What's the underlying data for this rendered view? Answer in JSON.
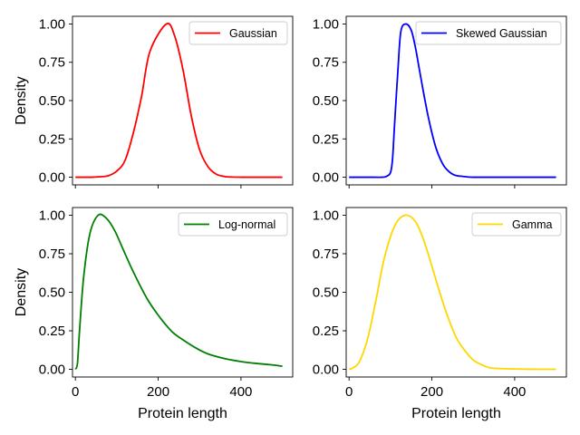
{
  "chart_data": [
    {
      "type": "line",
      "name": "Gaussian",
      "color": "#ff0000",
      "series": [
        {
          "name": "Gaussian",
          "values": [
            0,
            0,
            0,
            0.003,
            0.01,
            0.04,
            0.11,
            0.29,
            0.53,
            0.82,
            1.0,
            0.92,
            0.7,
            0.4,
            0.18,
            0.07,
            0.02,
            0.005,
            0.001,
            0,
            0,
            0,
            0
          ]
        }
      ],
      "x": [
        0,
        20,
        40,
        60,
        80,
        100,
        120,
        140,
        160,
        180,
        220,
        240,
        260,
        280,
        300,
        320,
        340,
        360,
        380,
        400,
        420,
        460,
        500
      ],
      "xlim": [
        -7,
        525
      ],
      "ylim": [
        -0.05,
        1.05
      ],
      "xticks": [
        0,
        200,
        400
      ],
      "yticks": [
        "0.00",
        "0.25",
        "0.50",
        "0.75",
        "1.00"
      ],
      "xlabel": "",
      "ylabel": "Density",
      "show_xtick_labels": false,
      "legend": "top-right",
      "grid": false
    },
    {
      "type": "line",
      "name": "Skewed Gaussian",
      "color": "#0000ff",
      "series": [
        {
          "name": "Skewed Gaussian",
          "values": [
            0,
            0,
            0,
            0,
            0.005,
            0.03,
            0.12,
            0.35,
            0.7,
            0.95,
            1.0,
            0.96,
            0.85,
            0.7,
            0.55,
            0.41,
            0.29,
            0.19,
            0.12,
            0.07,
            0.04,
            0.02,
            0.01,
            0.004,
            0,
            0,
            0
          ]
        }
      ],
      "x": [
        0,
        20,
        60,
        80,
        90,
        100,
        105,
        110,
        118,
        125,
        137,
        150,
        160,
        170,
        180,
        190,
        200,
        210,
        220,
        230,
        240,
        250,
        260,
        280,
        300,
        400,
        500
      ],
      "xlim": [
        -7,
        525
      ],
      "ylim": [
        -0.05,
        1.05
      ],
      "xticks": [
        0,
        200,
        400
      ],
      "yticks": [
        "0.00",
        "0.25",
        "0.50",
        "0.75",
        "1.00"
      ],
      "xlabel": "",
      "ylabel": "",
      "show_xtick_labels": false,
      "legend": "top-right",
      "grid": false
    },
    {
      "type": "line",
      "name": "Log-normal",
      "color": "#008000",
      "series": [
        {
          "name": "Log-normal",
          "values": [
            0.0,
            0.04,
            0.25,
            0.6,
            0.88,
            1.0,
            0.98,
            0.9,
            0.78,
            0.66,
            0.55,
            0.45,
            0.37,
            0.3,
            0.24,
            0.2,
            0.14,
            0.1,
            0.07,
            0.05,
            0.04,
            0.03,
            0.02
          ]
        }
      ],
      "x": [
        0,
        5,
        10,
        20,
        35,
        55,
        75,
        95,
        115,
        135,
        155,
        175,
        195,
        215,
        235,
        255,
        290,
        320,
        360,
        400,
        430,
        470,
        500
      ],
      "xlim": [
        -7,
        525
      ],
      "ylim": [
        -0.05,
        1.05
      ],
      "xticks": [
        0,
        200,
        400
      ],
      "yticks": [
        "0.00",
        "0.25",
        "0.50",
        "0.75",
        "1.00"
      ],
      "xlabel": "Protein length",
      "ylabel": "Density",
      "show_xtick_labels": true,
      "legend": "top-right",
      "grid": false
    },
    {
      "type": "line",
      "name": "Gamma",
      "color": "#ffd700",
      "series": [
        {
          "name": "Gamma",
          "values": [
            0,
            0.01,
            0.05,
            0.2,
            0.45,
            0.72,
            0.93,
            1.0,
            0.96,
            0.84,
            0.67,
            0.49,
            0.33,
            0.2,
            0.12,
            0.06,
            0.03,
            0.01,
            0.005,
            0.002,
            0,
            0
          ]
        }
      ],
      "x": [
        0,
        10,
        25,
        45,
        65,
        85,
        110,
        135,
        160,
        180,
        200,
        220,
        240,
        260,
        280,
        300,
        320,
        340,
        360,
        400,
        450,
        500
      ],
      "xlim": [
        -7,
        525
      ],
      "ylim": [
        -0.05,
        1.05
      ],
      "xticks": [
        0,
        200,
        400
      ],
      "yticks": [
        "0.00",
        "0.25",
        "0.50",
        "0.75",
        "1.00"
      ],
      "xlabel": "Protein length",
      "ylabel": "",
      "show_xtick_labels": true,
      "legend": "top-right",
      "grid": false
    }
  ]
}
